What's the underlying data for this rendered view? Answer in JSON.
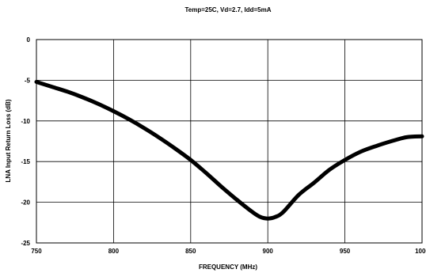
{
  "chart_data": {
    "type": "line",
    "title": "Temp=25C, Vd=2.7, Idd=5mA",
    "xlabel": "FREQUENCY (MHz)",
    "ylabel": "LNA Input Return Loss (dB)",
    "xlim": [
      750,
      1000
    ],
    "ylim": [
      -25,
      0
    ],
    "x_ticks": [
      "750",
      "800",
      "850",
      "900",
      "950",
      "1000"
    ],
    "y_ticks": [
      "0",
      "-5",
      "-10",
      "-15",
      "-20",
      "-25"
    ],
    "grid": true,
    "series": [
      {
        "x": [
          750,
          760,
          770,
          780,
          790,
          800,
          810,
          820,
          830,
          840,
          850,
          860,
          870,
          880,
          890,
          895,
          900,
          905,
          910,
          920,
          930,
          940,
          950,
          960,
          970,
          980,
          990,
          1000
        ],
        "y": [
          -5.2,
          -5.8,
          -6.4,
          -7.1,
          -7.9,
          -8.8,
          -9.8,
          -10.9,
          -12.1,
          -13.4,
          -14.8,
          -16.4,
          -18.1,
          -19.7,
          -21.2,
          -21.8,
          -22.0,
          -21.8,
          -21.2,
          -19.1,
          -17.6,
          -16.0,
          -14.8,
          -13.8,
          -13.1,
          -12.5,
          -12.0,
          -11.9
        ]
      }
    ]
  }
}
